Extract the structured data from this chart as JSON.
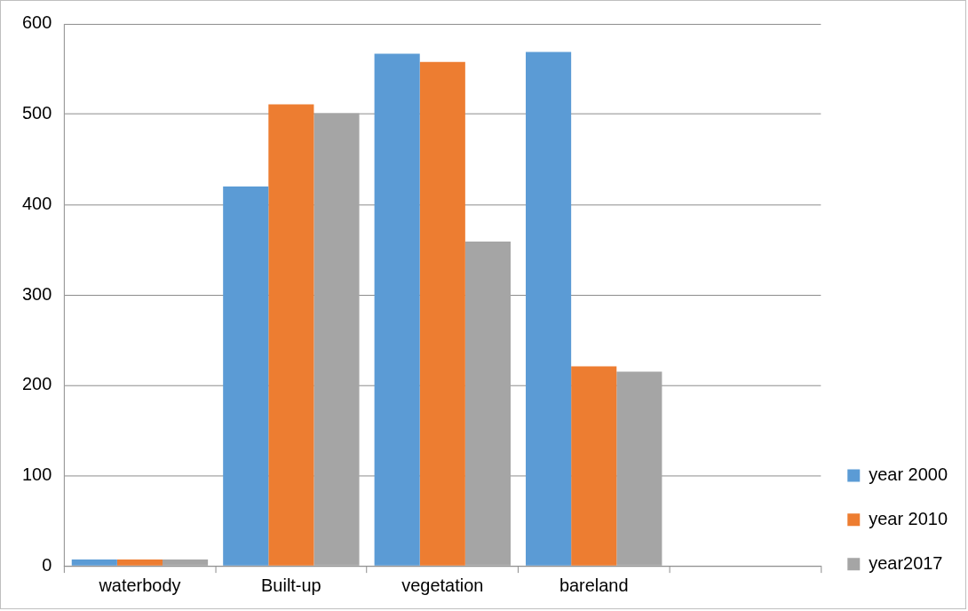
{
  "chart_data": {
    "type": "bar",
    "categories": [
      "waterbody",
      "Built-up",
      "vegetation",
      "bareland",
      null
    ],
    "series": [
      {
        "name": "year 2000",
        "color": "#5b9bd5",
        "values": [
          7,
          420,
          567,
          569,
          null
        ]
      },
      {
        "name": "year 2010",
        "color": "#ed7d31",
        "values": [
          7,
          511,
          558,
          221,
          null
        ]
      },
      {
        "name": "year2017",
        "color": "#a5a5a5",
        "values": [
          7,
          501,
          359,
          215,
          null
        ]
      }
    ],
    "ylim": [
      0,
      600
    ],
    "yticks": [
      0,
      100,
      200,
      300,
      400,
      500,
      600
    ],
    "grid": "y",
    "legend": "bottom right"
  }
}
